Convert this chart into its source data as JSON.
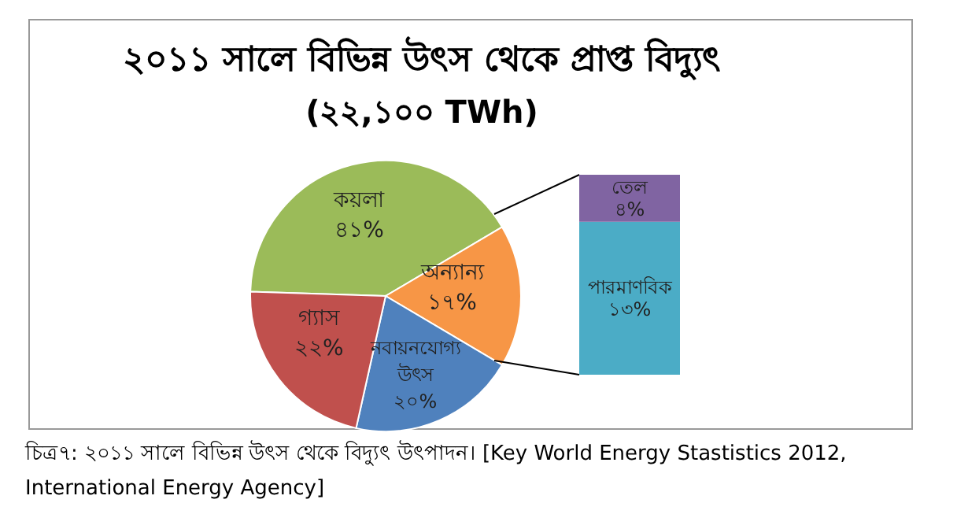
{
  "chart_data": [
    {
      "type": "pie",
      "title": "২০১১ সালে বিভিন্ন উৎস থেকে প্রাপ্ত বিদ্যুৎ",
      "subtitle": "(২২,১০০ TWh)",
      "categories": [
        "কয়লা",
        "অন্যান্য",
        "নবায়নযোগ্য উৎস",
        "গ্যাস"
      ],
      "values": [
        41,
        17,
        20,
        22
      ],
      "value_labels": [
        "৪১%",
        "১৭%",
        "২০%",
        "২২%"
      ],
      "colors": [
        "#9bbb59",
        "#f79646",
        "#4f81bd",
        "#c0504d"
      ],
      "legend": false,
      "annotations": [
        "চিত্র৭: ২০১১ সালে বিভিন্ন উৎস থেকে বিদ্যুৎ উৎপাদন। [Key World Energy Stastistics 2012, International Energy Agency]"
      ]
    },
    {
      "type": "bar",
      "stacked": true,
      "categories": [
        null
      ],
      "legend": false,
      "series": [
        {
          "name": "পারমাণবিক",
          "color": "#4bacc6",
          "values": [
            13
          ],
          "value_labels": [
            "১৩%"
          ]
        },
        {
          "name": "তেল",
          "color": "#8064a2",
          "values": [
            4
          ],
          "value_labels": [
            "৪%"
          ]
        }
      ]
    }
  ]
}
